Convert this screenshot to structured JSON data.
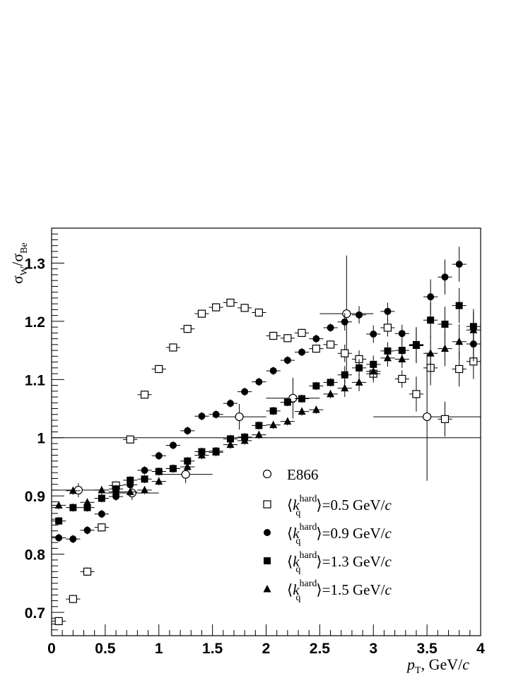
{
  "chart_data": {
    "type": "scatter",
    "xlim": [
      0,
      4
    ],
    "ylim": [
      0.66,
      1.36
    ],
    "reference_line_y": 1.0,
    "x_ticks": [
      "0",
      "0.5",
      "1",
      "1.5",
      "2",
      "2.5",
      "3",
      "3.5",
      "4"
    ],
    "y_ticks": [
      "0.7",
      "0.8",
      "0.9",
      "1",
      "1.1",
      "1.2",
      "1.3"
    ],
    "ylabel": {
      "base1": "σ",
      "sub1": "W",
      "slash": "/",
      "base2": "σ",
      "sub2": "Be"
    },
    "xlabel": {
      "var": "p",
      "sub": "T",
      "units": ", GeV/",
      "c": "c"
    },
    "legend_position": "bottom-right",
    "series": [
      {
        "name": "E866",
        "marker": "open-circle",
        "points": [
          {
            "x": 0.25,
            "y": 0.91,
            "xerr": 0.25,
            "yerr": 0.012
          },
          {
            "x": 0.75,
            "y": 0.905,
            "xerr": 0.25,
            "yerr": 0.012
          },
          {
            "x": 1.25,
            "y": 0.937,
            "xerr": 0.25,
            "yerr": 0.015
          },
          {
            "x": 1.75,
            "y": 1.036,
            "xerr": 0.25,
            "yerr": 0.022
          },
          {
            "x": 2.25,
            "y": 1.068,
            "xerr": 0.25,
            "yerr": 0.035
          },
          {
            "x": 2.75,
            "y": 1.213,
            "xerr": 0.25,
            "yerr": 0.1
          },
          {
            "x": 3.5,
            "y": 1.036,
            "xerr": 0.5,
            "yerr": 0.11
          }
        ]
      },
      {
        "legend": {
          "open": "⟨",
          "k": "k",
          "sub": "q",
          "sup": "hard",
          "close": "⟩",
          "value": "=0.5 GeV/",
          "c": "c"
        },
        "marker": "open-square",
        "points": [
          {
            "x": 0.067,
            "y": 0.685
          },
          {
            "x": 0.2,
            "y": 0.723
          },
          {
            "x": 0.333,
            "y": 0.77
          },
          {
            "x": 0.467,
            "y": 0.846
          },
          {
            "x": 0.6,
            "y": 0.918
          },
          {
            "x": 0.733,
            "y": 0.997
          },
          {
            "x": 0.867,
            "y": 1.074
          },
          {
            "x": 1.0,
            "y": 1.118
          },
          {
            "x": 1.133,
            "y": 1.155
          },
          {
            "x": 1.267,
            "y": 1.187
          },
          {
            "x": 1.4,
            "y": 1.213
          },
          {
            "x": 1.533,
            "y": 1.224
          },
          {
            "x": 1.667,
            "y": 1.232
          },
          {
            "x": 1.8,
            "y": 1.223
          },
          {
            "x": 1.933,
            "y": 1.215
          },
          {
            "x": 2.067,
            "y": 1.175
          },
          {
            "x": 2.2,
            "y": 1.171
          },
          {
            "x": 2.333,
            "y": 1.18
          },
          {
            "x": 2.467,
            "y": 1.153
          },
          {
            "x": 2.6,
            "y": 1.16
          },
          {
            "x": 2.733,
            "y": 1.145
          },
          {
            "x": 2.867,
            "y": 1.135
          },
          {
            "x": 3.0,
            "y": 1.11
          },
          {
            "x": 3.133,
            "y": 1.189
          },
          {
            "x": 3.267,
            "y": 1.101
          },
          {
            "x": 3.4,
            "y": 1.075
          },
          {
            "x": 3.533,
            "y": 1.12
          },
          {
            "x": 3.667,
            "y": 1.032
          },
          {
            "x": 3.8,
            "y": 1.118
          },
          {
            "x": 3.933,
            "y": 1.131
          }
        ]
      },
      {
        "legend": {
          "open": "⟨",
          "k": "k",
          "sub": "q",
          "sup": "hard",
          "close": "⟩",
          "value": "=0.9 GeV/",
          "c": "c"
        },
        "marker": "filled-circle",
        "points": [
          {
            "x": 0.067,
            "y": 0.828
          },
          {
            "x": 0.2,
            "y": 0.826
          },
          {
            "x": 0.333,
            "y": 0.841
          },
          {
            "x": 0.467,
            "y": 0.869
          },
          {
            "x": 0.6,
            "y": 0.899
          },
          {
            "x": 0.733,
            "y": 0.919
          },
          {
            "x": 0.867,
            "y": 0.944
          },
          {
            "x": 1.0,
            "y": 0.969
          },
          {
            "x": 1.133,
            "y": 0.987
          },
          {
            "x": 1.267,
            "y": 1.012
          },
          {
            "x": 1.4,
            "y": 1.037
          },
          {
            "x": 1.533,
            "y": 1.04
          },
          {
            "x": 1.667,
            "y": 1.059
          },
          {
            "x": 1.8,
            "y": 1.079
          },
          {
            "x": 1.933,
            "y": 1.096
          },
          {
            "x": 2.067,
            "y": 1.115
          },
          {
            "x": 2.2,
            "y": 1.133
          },
          {
            "x": 2.333,
            "y": 1.147
          },
          {
            "x": 2.467,
            "y": 1.17
          },
          {
            "x": 2.6,
            "y": 1.189
          },
          {
            "x": 2.733,
            "y": 1.199
          },
          {
            "x": 2.867,
            "y": 1.211
          },
          {
            "x": 3.0,
            "y": 1.178
          },
          {
            "x": 3.133,
            "y": 1.217
          },
          {
            "x": 3.267,
            "y": 1.179
          },
          {
            "x": 3.4,
            "y": 1.159
          },
          {
            "x": 3.533,
            "y": 1.242
          },
          {
            "x": 3.667,
            "y": 1.276
          },
          {
            "x": 3.8,
            "y": 1.298
          },
          {
            "x": 3.933,
            "y": 1.161
          }
        ]
      },
      {
        "legend": {
          "open": "⟨",
          "k": "k",
          "sub": "q",
          "sup": "hard",
          "close": "⟩",
          "value": "=1.3 GeV/",
          "c": "c"
        },
        "marker": "filled-square",
        "points": [
          {
            "x": 0.067,
            "y": 0.857
          },
          {
            "x": 0.2,
            "y": 0.88
          },
          {
            "x": 0.333,
            "y": 0.88
          },
          {
            "x": 0.467,
            "y": 0.896
          },
          {
            "x": 0.6,
            "y": 0.912
          },
          {
            "x": 0.733,
            "y": 0.927
          },
          {
            "x": 0.867,
            "y": 0.929
          },
          {
            "x": 1.0,
            "y": 0.942
          },
          {
            "x": 1.133,
            "y": 0.947
          },
          {
            "x": 1.267,
            "y": 0.96
          },
          {
            "x": 1.4,
            "y": 0.976
          },
          {
            "x": 1.533,
            "y": 0.977
          },
          {
            "x": 1.667,
            "y": 0.998
          },
          {
            "x": 1.8,
            "y": 1.001
          },
          {
            "x": 1.933,
            "y": 1.021
          },
          {
            "x": 2.067,
            "y": 1.046
          },
          {
            "x": 2.2,
            "y": 1.061
          },
          {
            "x": 2.333,
            "y": 1.067
          },
          {
            "x": 2.467,
            "y": 1.089
          },
          {
            "x": 2.6,
            "y": 1.095
          },
          {
            "x": 2.733,
            "y": 1.108
          },
          {
            "x": 2.867,
            "y": 1.12
          },
          {
            "x": 3.0,
            "y": 1.126
          },
          {
            "x": 3.133,
            "y": 1.149
          },
          {
            "x": 3.267,
            "y": 1.15
          },
          {
            "x": 3.4,
            "y": 1.16
          },
          {
            "x": 3.533,
            "y": 1.202
          },
          {
            "x": 3.667,
            "y": 1.195
          },
          {
            "x": 3.8,
            "y": 1.227
          },
          {
            "x": 3.933,
            "y": 1.191
          }
        ]
      },
      {
        "legend": {
          "open": "⟨",
          "k": "k",
          "sub": "q",
          "sup": "hard",
          "close": "⟩",
          "value": "=1.5 GeV/",
          "c": "c"
        },
        "marker": "filled-triangle",
        "points": [
          {
            "x": 0.067,
            "y": 0.884
          },
          {
            "x": 0.2,
            "y": 0.909
          },
          {
            "x": 0.333,
            "y": 0.889
          },
          {
            "x": 0.467,
            "y": 0.91
          },
          {
            "x": 0.6,
            "y": 0.907
          },
          {
            "x": 0.733,
            "y": 0.907
          },
          {
            "x": 0.867,
            "y": 0.91
          },
          {
            "x": 1.0,
            "y": 0.925
          },
          {
            "x": 1.133,
            "y": 0.947
          },
          {
            "x": 1.267,
            "y": 0.95
          },
          {
            "x": 1.4,
            "y": 0.97
          },
          {
            "x": 1.533,
            "y": 0.975
          },
          {
            "x": 1.667,
            "y": 0.988
          },
          {
            "x": 1.8,
            "y": 0.995
          },
          {
            "x": 1.933,
            "y": 1.005
          },
          {
            "x": 2.067,
            "y": 1.022
          },
          {
            "x": 2.2,
            "y": 1.028
          },
          {
            "x": 2.333,
            "y": 1.045
          },
          {
            "x": 2.467,
            "y": 1.048
          },
          {
            "x": 2.6,
            "y": 1.075
          },
          {
            "x": 2.733,
            "y": 1.085
          },
          {
            "x": 2.867,
            "y": 1.095
          },
          {
            "x": 3.0,
            "y": 1.114
          },
          {
            "x": 3.133,
            "y": 1.137
          },
          {
            "x": 3.267,
            "y": 1.135
          },
          {
            "x": 3.4,
            "y": 1.158
          },
          {
            "x": 3.533,
            "y": 1.145
          },
          {
            "x": 3.667,
            "y": 1.153
          },
          {
            "x": 3.8,
            "y": 1.165
          },
          {
            "x": 3.933,
            "y": 1.185
          }
        ]
      }
    ]
  }
}
